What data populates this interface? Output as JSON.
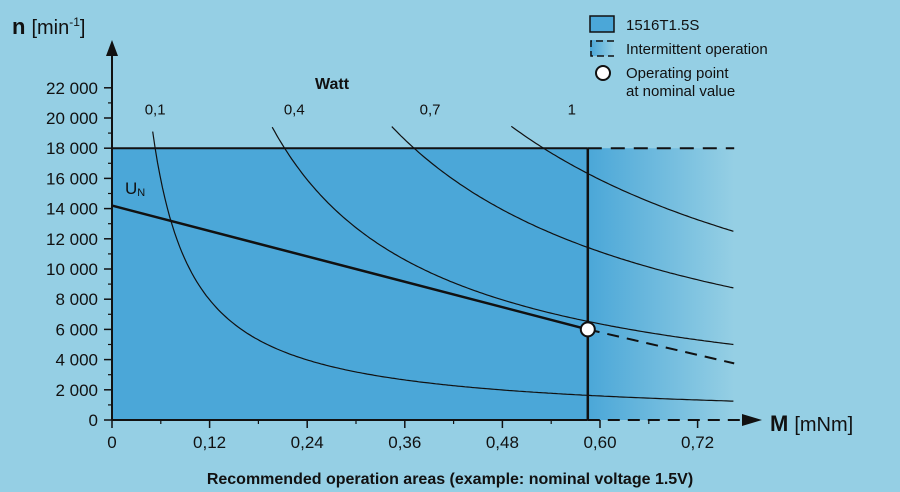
{
  "chart_data": {
    "type": "line",
    "caption": "Recommended operation areas (example: nominal voltage 1.5V)",
    "x_axis": {
      "label_bold": "M",
      "label_unit": "[mNm]",
      "range": [
        0,
        0.78
      ],
      "ticks": [
        "0",
        "0,12",
        "0,24",
        "0,36",
        "0,48",
        "0,60",
        "0,72"
      ],
      "tick_values": [
        0,
        0.12,
        0.24,
        0.36,
        0.48,
        0.6,
        0.72
      ]
    },
    "y_axis": {
      "label_bold": "n",
      "label_unit": "[min",
      "label_sup": "-1",
      "label_close": "]",
      "range": [
        0,
        23000
      ],
      "ticks": [
        "0",
        "2 000",
        "4 000",
        "6 000",
        "8 000",
        "10 000",
        "12 000",
        "14 000",
        "16 000",
        "18 000",
        "20 000",
        "22 000"
      ],
      "tick_values": [
        0,
        2000,
        4000,
        6000,
        8000,
        10000,
        12000,
        14000,
        16000,
        18000,
        20000,
        22000
      ]
    },
    "continuous_region": {
      "max_torque": 0.585,
      "max_speed": 18000,
      "color": "#4ba7d8"
    },
    "intermittent_region": {
      "max_torque": 0.765,
      "max_speed": 18000
    },
    "power_curves_title": "Watt",
    "power_curves": [
      {
        "label": "0,1",
        "watts": 0.1
      },
      {
        "label": "0,4",
        "watts": 0.4
      },
      {
        "label": "0,7",
        "watts": 0.7
      },
      {
        "label": "1",
        "watts": 1.0
      }
    ],
    "nominal_line": {
      "label": "U",
      "label_sub": "N",
      "x": [
        0,
        0.585,
        0.765
      ],
      "y": [
        14200,
        6000,
        3750
      ]
    },
    "operating_point": {
      "x": 0.585,
      "y": 6000
    },
    "legend": [
      {
        "symbol": "filled-square",
        "label": "1516T1.5S"
      },
      {
        "symbol": "gradient-dashed",
        "label": "Intermittent operation"
      },
      {
        "symbol": "circle",
        "label": "Operating point",
        "label2": "at nominal value"
      }
    ],
    "colors": {
      "background": "#95cfe4",
      "continuous_fill": "#4ba7d8",
      "line": "#111111"
    }
  }
}
